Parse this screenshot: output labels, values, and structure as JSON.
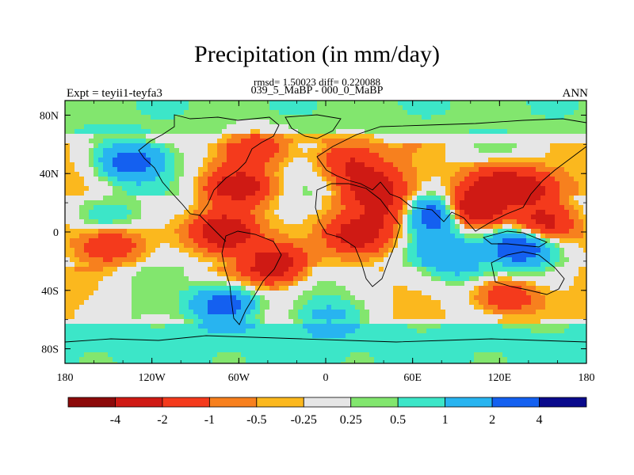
{
  "title": "Precipitation (in mm/day)",
  "subtitle_line1": "rmsd= 1.50023 diff= 0.220088",
  "subtitle_line2": "039_5_MaBP - 000_0_MaBP",
  "left_label": "Expt = teyii1-teyfa3",
  "right_label": "ANN",
  "chart_data": {
    "type": "heatmap",
    "title": "Precipitation (in mm/day)",
    "projection": "cylindrical-equidistant",
    "xlim": [
      -180,
      180
    ],
    "ylim": [
      -90,
      90
    ],
    "x_ticks": [
      {
        "value": -180,
        "label": "180"
      },
      {
        "value": -120,
        "label": "120W"
      },
      {
        "value": -60,
        "label": "60W"
      },
      {
        "value": 0,
        "label": "0"
      },
      {
        "value": 60,
        "label": "60E"
      },
      {
        "value": 120,
        "label": "120E"
      },
      {
        "value": 180,
        "label": "180"
      }
    ],
    "y_ticks": [
      {
        "value": 80,
        "label": "80N"
      },
      {
        "value": 40,
        "label": "40N"
      },
      {
        "value": 0,
        "label": "0"
      },
      {
        "value": -40,
        "label": "40S"
      },
      {
        "value": -80,
        "label": "80S"
      }
    ],
    "colorbar": {
      "levels": [
        -4,
        -2,
        -1,
        -0.5,
        -0.25,
        0.25,
        0.5,
        1,
        2,
        4
      ],
      "labels": [
        "-4",
        "-2",
        "-1",
        "-0.5",
        "-0.25",
        "0.25",
        "0.5",
        "1",
        "2",
        "4"
      ],
      "colors": [
        "#8c0a0a",
        "#cf1a14",
        "#f43a1c",
        "#f7801e",
        "#fbb81e",
        "#e6e6e6",
        "#82e66e",
        "#3ce6c8",
        "#28b4f0",
        "#1460f0",
        "#0a0a8c"
      ]
    },
    "field_features": [
      {
        "lon": -135,
        "lat": 48,
        "value": 2.5
      },
      {
        "lon": -70,
        "lat": 0,
        "value": -3.5
      },
      {
        "lon": -60,
        "lat": 30,
        "value": -2.5
      },
      {
        "lon": -50,
        "lat": 58,
        "value": -1.5
      },
      {
        "lon": -35,
        "lat": -22,
        "value": -3
      },
      {
        "lon": -70,
        "lat": -50,
        "value": 3
      },
      {
        "lon": 15,
        "lat": 50,
        "value": -2
      },
      {
        "lon": 30,
        "lat": 32,
        "value": -2.5
      },
      {
        "lon": 22,
        "lat": -2,
        "value": -3
      },
      {
        "lon": 45,
        "lat": 15,
        "value": -2
      },
      {
        "lon": 75,
        "lat": 12,
        "value": 3.8
      },
      {
        "lon": 100,
        "lat": 15,
        "value": -3.8
      },
      {
        "lon": 115,
        "lat": 35,
        "value": -2
      },
      {
        "lon": 140,
        "lat": 30,
        "value": -2.5
      },
      {
        "lon": 150,
        "lat": 5,
        "value": -2.5
      },
      {
        "lon": 135,
        "lat": -10,
        "value": 3.5
      },
      {
        "lon": 125,
        "lat": -45,
        "value": -2
      },
      {
        "lon": -150,
        "lat": -8,
        "value": -2
      },
      {
        "lon": -150,
        "lat": 10,
        "value": 1
      },
      {
        "lon": 75,
        "lat": -10,
        "value": 1
      },
      {
        "lon": 90,
        "lat": -20,
        "value": 1.5
      },
      {
        "lon": 0,
        "lat": 15,
        "value": -0.1
      },
      {
        "lon": 30,
        "lat": 70,
        "value": -0.1
      },
      {
        "lon": 0,
        "lat": -60,
        "value": 1
      }
    ]
  }
}
